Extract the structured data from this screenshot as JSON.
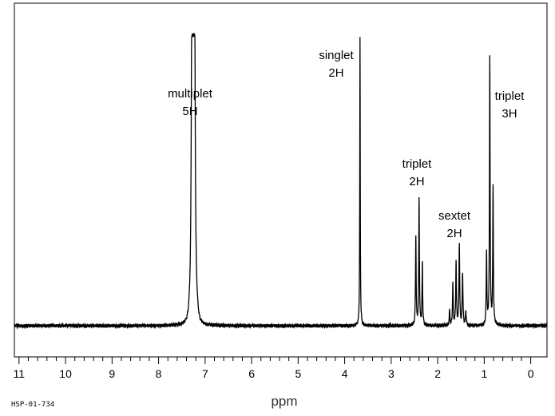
{
  "sample_id": "HSP-01-734",
  "chart_data": {
    "type": "line",
    "title": "",
    "xlabel": "ppm",
    "ylabel": "",
    "xlim": [
      11.1,
      -0.35
    ],
    "x_reversed": true,
    "ylim": [
      0,
      1
    ],
    "grid": false,
    "x_ticks": [
      11,
      10,
      9,
      8,
      7,
      6,
      5,
      4,
      3,
      2,
      1,
      0
    ],
    "peaks": [
      {
        "center": 7.25,
        "height": 0.68,
        "label": "multiplet",
        "integration": "5H"
      },
      {
        "center": 3.67,
        "height": 0.99,
        "label": "singlet",
        "integration": "2H"
      },
      {
        "center": 2.4,
        "height": 0.44,
        "label": "triplet",
        "integration": "2H"
      },
      {
        "center": 1.57,
        "height": 0.26,
        "label": "sextet",
        "integration": "2H"
      },
      {
        "center": 0.88,
        "height": 0.92,
        "label": "triplet",
        "integration": "3H"
      }
    ]
  }
}
